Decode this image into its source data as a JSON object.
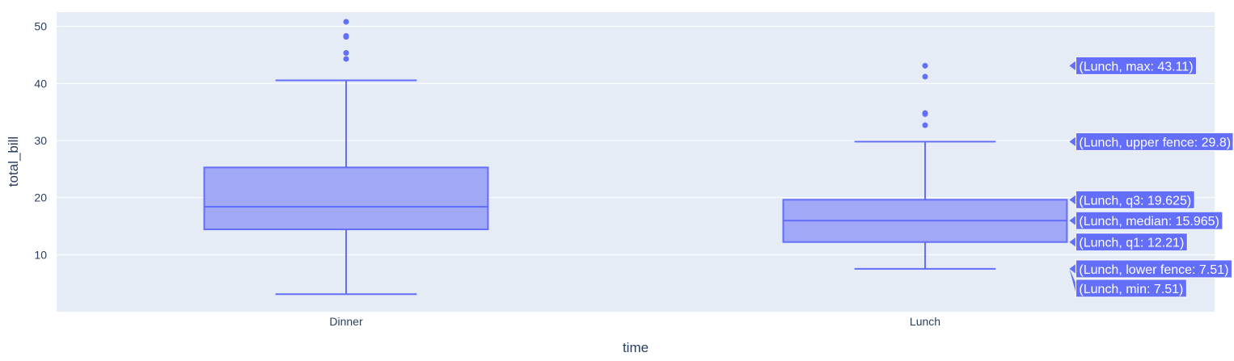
{
  "chart_data": {
    "type": "box",
    "xlabel": "time",
    "ylabel": "total_bill",
    "categories": [
      "Dinner",
      "Lunch"
    ],
    "ylim": [
      0,
      52.5
    ],
    "yticks": [
      10,
      20,
      30,
      40,
      50
    ],
    "grid": true,
    "colors": {
      "plot_bg": "#e5ecf6",
      "grid": "#ffffff",
      "box_line": "#636efa",
      "box_fill": "#a1a8f6",
      "text": "#2a3f5f"
    },
    "boxes": [
      {
        "name": "Dinner",
        "min": 3.07,
        "lower_fence": 3.07,
        "q1": 14.43,
        "median": 18.39,
        "q3": 25.28,
        "upper_fence": 40.55,
        "max": 50.81,
        "outliers": [
          44.3,
          45.35,
          48.17,
          48.27,
          48.33,
          50.81
        ]
      },
      {
        "name": "Lunch",
        "min": 7.51,
        "lower_fence": 7.51,
        "q1": 12.21,
        "median": 15.965,
        "q3": 19.625,
        "upper_fence": 29.8,
        "max": 43.11,
        "outliers": [
          32.68,
          34.63,
          34.81,
          41.19,
          43.11
        ]
      }
    ],
    "hover_labels": [
      {
        "text": "(Lunch, max: 43.11)",
        "y": 43.11
      },
      {
        "text": "(Lunch, upper fence: 29.8)",
        "y": 29.8
      },
      {
        "text": "(Lunch, q3: 19.625)",
        "y": 19.625
      },
      {
        "text": "(Lunch, median: 15.965)",
        "y": 15.965
      },
      {
        "text": "(Lunch, q1: 12.21)",
        "y": 12.21
      },
      {
        "text": "(Lunch, lower fence: 7.51)",
        "y": 7.51
      },
      {
        "text": "(Lunch, min: 7.51)",
        "y": 7.51
      }
    ]
  }
}
